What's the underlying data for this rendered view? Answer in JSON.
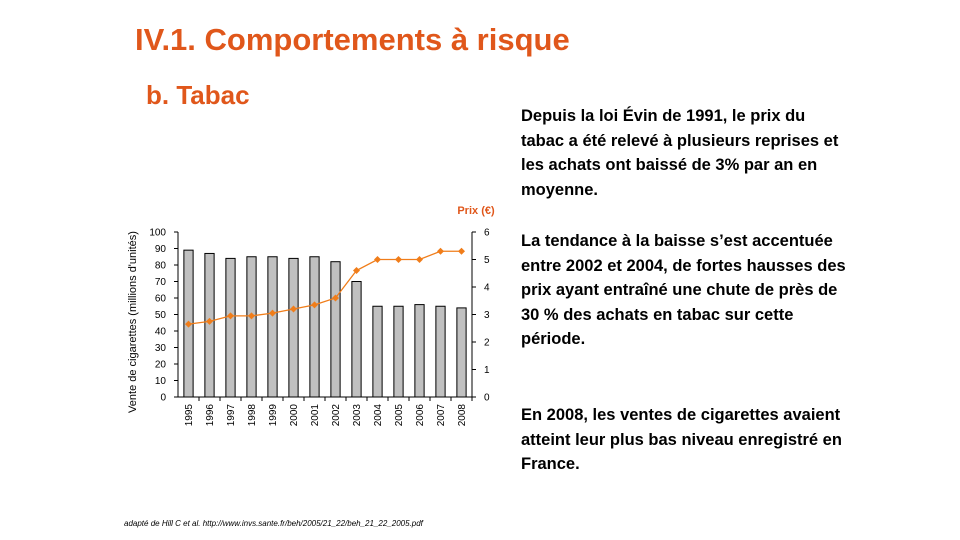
{
  "slide": {
    "title": "IV.1. Comportements à risque",
    "subtitle": "b. Tabac",
    "paragraphs": [
      "Depuis la loi Évin de 1991, le prix du tabac a été relevé à plusieurs reprises et les achats ont baissé de 3% par an en moyenne.",
      "La tendance à la baisse s’est accentuée entre 2002 et 2004, de fortes hausses des prix ayant entraîné une chute de près de 30 % des achats en tabac sur cette période.",
      "En 2008, les ventes de cigarettes avaient atteint leur plus bas niveau enregistré en France."
    ],
    "source": "adapté de Hill C et al. http://www.invs.sante.fr/beh/2005/21_22/beh_21_22_2005.pdf"
  },
  "colors": {
    "title": "#e0571b",
    "bar_fill": "#c0c0c0",
    "bar_stroke": "#000000",
    "price_line": "#f07d1a"
  },
  "chart_data": {
    "type": "bar+line",
    "categories": [
      "1995",
      "1996",
      "1997",
      "1998",
      "1999",
      "2000",
      "2001",
      "2002",
      "2003",
      "2004",
      "2005",
      "2006",
      "2007",
      "2008"
    ],
    "series": [
      {
        "axis": "left",
        "type": "bar",
        "values": [
          89,
          87,
          84,
          85,
          85,
          84,
          85,
          82,
          70,
          55,
          55,
          56,
          55,
          54
        ]
      },
      {
        "axis": "right",
        "type": "line",
        "values": [
          2.65,
          2.75,
          2.95,
          2.95,
          3.05,
          3.2,
          3.35,
          3.6,
          4.6,
          5.0,
          5.0,
          5.0,
          5.3,
          5.3
        ]
      }
    ],
    "ylabel": "Vente de cigarettes (millions d'unités)",
    "y2label": "Prix (€)",
    "ylim": [
      0,
      100
    ],
    "yticks": [
      0,
      10,
      20,
      30,
      40,
      50,
      60,
      70,
      80,
      90,
      100
    ],
    "y2lim": [
      0,
      6
    ],
    "y2ticks": [
      0,
      1,
      2,
      3,
      4,
      5,
      6
    ],
    "grid": false,
    "legend": "none"
  }
}
